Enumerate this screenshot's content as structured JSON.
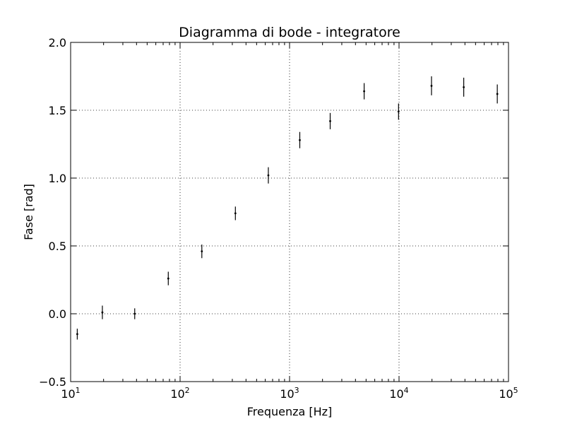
{
  "chart_data": {
    "type": "scatter",
    "title": "Diagramma di bode - integratore",
    "xlabel": "Frequenza [Hz]",
    "ylabel": "Fase [rad]",
    "x_scale": "log",
    "xlim": [
      10,
      100000
    ],
    "ylim": [
      -0.5,
      2.0
    ],
    "grid": true,
    "x_ticks": [
      {
        "value": 10,
        "base": "10",
        "exp": "1"
      },
      {
        "value": 100,
        "base": "10",
        "exp": "2"
      },
      {
        "value": 1000,
        "base": "10",
        "exp": "3"
      },
      {
        "value": 10000,
        "base": "10",
        "exp": "4"
      },
      {
        "value": 100000,
        "base": "10",
        "exp": "5"
      }
    ],
    "y_ticks": [
      {
        "value": -0.5,
        "label": "−0.5"
      },
      {
        "value": 0.0,
        "label": "0.0"
      },
      {
        "value": 0.5,
        "label": "0.5"
      },
      {
        "value": 1.0,
        "label": "1.0"
      },
      {
        "value": 1.5,
        "label": "1.5"
      },
      {
        "value": 2.0,
        "label": "2.0"
      }
    ],
    "series": [
      {
        "color": "#000000",
        "points": [
          {
            "x": 11.5,
            "y": -0.15,
            "err": 0.04
          },
          {
            "x": 19.5,
            "y": 0.01,
            "err": 0.05
          },
          {
            "x": 38.5,
            "y": 0.0,
            "err": 0.04
          },
          {
            "x": 78,
            "y": 0.26,
            "err": 0.05
          },
          {
            "x": 158,
            "y": 0.46,
            "err": 0.05
          },
          {
            "x": 320,
            "y": 0.74,
            "err": 0.05
          },
          {
            "x": 640,
            "y": 1.02,
            "err": 0.06
          },
          {
            "x": 1240,
            "y": 1.28,
            "err": 0.06
          },
          {
            "x": 2350,
            "y": 1.42,
            "err": 0.06
          },
          {
            "x": 4800,
            "y": 1.64,
            "err": 0.06
          },
          {
            "x": 9900,
            "y": 1.49,
            "err": 0.06
          },
          {
            "x": 19800,
            "y": 1.68,
            "err": 0.07
          },
          {
            "x": 39000,
            "y": 1.67,
            "err": 0.07
          },
          {
            "x": 79000,
            "y": 1.62,
            "err": 0.07
          }
        ]
      }
    ]
  }
}
